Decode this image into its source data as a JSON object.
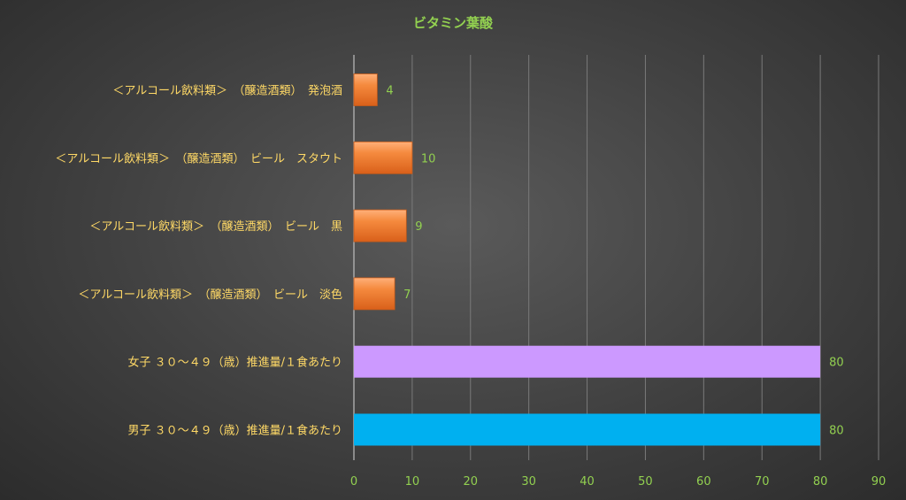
{
  "chart_data": {
    "type": "bar",
    "orientation": "horizontal",
    "title": "ビタミン葉酸",
    "xlabel": "",
    "ylabel": "",
    "xlim": [
      0,
      90
    ],
    "x_ticks": [
      0,
      10,
      20,
      30,
      40,
      50,
      60,
      70,
      80,
      90
    ],
    "grid": true,
    "legend": "none",
    "categories": [
      "＜アルコール飲料類＞　（醸造酒類）　発泡酒",
      "＜アルコール飲料類＞　（醸造酒類）　ビール　スタウト",
      "＜アルコール飲料類＞　（醸造酒類）　ビール　黒",
      "＜アルコール飲料類＞　（醸造酒類）　ビール　淡色",
      "女子 ３０～４９（歳）推進量/１食あたり",
      "男子 ３０～４９（歳）推進量/１食あたり"
    ],
    "values": [
      4,
      10,
      9,
      7,
      80,
      80
    ],
    "data_labels": [
      "4",
      "10",
      "9",
      "7",
      "80",
      "80"
    ],
    "bar_colors": [
      "#f07a2a",
      "#f07a2a",
      "#f07a2a",
      "#f07a2a",
      "#cc99ff",
      "#00b0f0"
    ],
    "colors": {
      "title": "#92d050",
      "category_label": "#ffd966",
      "tick_label": "#92d050",
      "data_label": "#92d050",
      "gridline": "#7a7a7a",
      "axis": "#bfbfbf"
    }
  }
}
